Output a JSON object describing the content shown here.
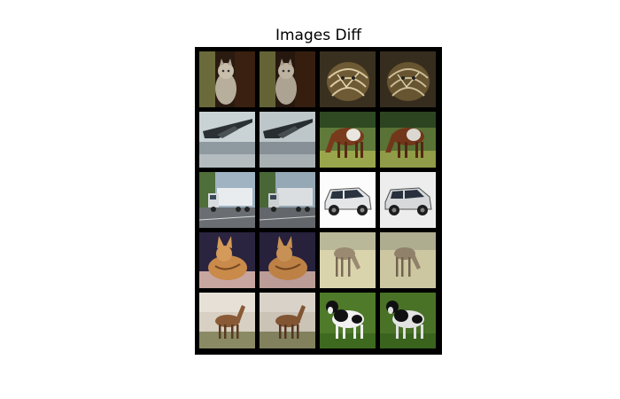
{
  "figure": {
    "title": "Images Diff",
    "grid": {
      "rows": 5,
      "cols": 4
    },
    "cells": [
      {
        "subject": "cat-photo",
        "pair_role": "original"
      },
      {
        "subject": "cat-photo",
        "pair_role": "diffed"
      },
      {
        "subject": "tabby-cat-photo",
        "pair_role": "original"
      },
      {
        "subject": "tabby-cat-photo",
        "pair_role": "diffed"
      },
      {
        "subject": "airplane-photo",
        "pair_role": "original"
      },
      {
        "subject": "airplane-photo",
        "pair_role": "diffed"
      },
      {
        "subject": "horse-photo",
        "pair_role": "original"
      },
      {
        "subject": "horse-photo",
        "pair_role": "diffed"
      },
      {
        "subject": "truck-photo",
        "pair_role": "original"
      },
      {
        "subject": "truck-photo",
        "pair_role": "diffed"
      },
      {
        "subject": "white-suv-photo",
        "pair_role": "original"
      },
      {
        "subject": "white-suv-photo",
        "pair_role": "diffed"
      },
      {
        "subject": "fawn-cat-photo",
        "pair_role": "original"
      },
      {
        "subject": "fawn-cat-photo",
        "pair_role": "diffed"
      },
      {
        "subject": "grazing-deer-photo",
        "pair_role": "original"
      },
      {
        "subject": "grazing-deer-photo",
        "pair_role": "diffed"
      },
      {
        "subject": "deer-photo",
        "pair_role": "original"
      },
      {
        "subject": "deer-photo",
        "pair_role": "diffed"
      },
      {
        "subject": "black-white-dog-photo",
        "pair_role": "original"
      },
      {
        "subject": "black-white-dog-photo",
        "pair_role": "diffed"
      }
    ]
  }
}
